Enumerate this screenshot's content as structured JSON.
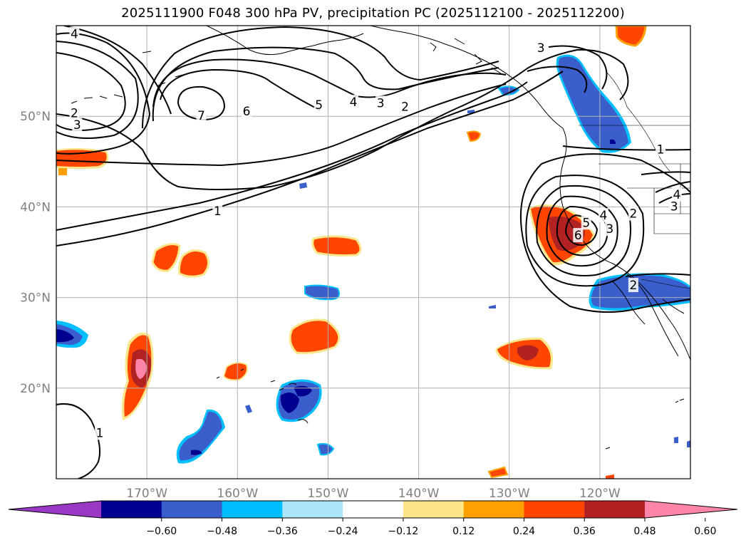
{
  "title": "2025111900 F048 300 hPa PV, precipitation PC (2025112100 - 2025112200)",
  "map": {
    "lon_range": [
      -180,
      -110
    ],
    "lat_range": [
      10,
      60
    ],
    "lat_ticks": [
      {
        "value": 50,
        "label": "50°N"
      },
      {
        "value": 40,
        "label": "40°N"
      },
      {
        "value": 30,
        "label": "30°N"
      },
      {
        "value": 20,
        "label": "20°N"
      }
    ],
    "lon_ticks": [
      {
        "value": -170,
        "label": "170°W"
      },
      {
        "value": -160,
        "label": "160°W"
      },
      {
        "value": -150,
        "label": "150°W"
      },
      {
        "value": -140,
        "label": "140°W"
      },
      {
        "value": -130,
        "label": "130°W"
      },
      {
        "value": -120,
        "label": "120°W"
      }
    ],
    "pv_contour_labels": [
      {
        "text": "4",
        "lon": -178,
        "lat": 59
      },
      {
        "text": "2",
        "lon": -178,
        "lat": 50.3
      },
      {
        "text": "3",
        "lon": -177.7,
        "lat": 49
      },
      {
        "text": "7",
        "lon": -164,
        "lat": 50
      },
      {
        "text": "6",
        "lon": -159,
        "lat": 50.5
      },
      {
        "text": "5",
        "lon": -151,
        "lat": 51.2
      },
      {
        "text": "4",
        "lon": -147.2,
        "lat": 51.5
      },
      {
        "text": "3",
        "lon": -144.2,
        "lat": 51.4
      },
      {
        "text": "2",
        "lon": -141.5,
        "lat": 51
      },
      {
        "text": "3",
        "lon": -126.5,
        "lat": 57.5
      },
      {
        "text": "1",
        "lon": -162.2,
        "lat": 39.5
      },
      {
        "text": "1",
        "lon": -113.3,
        "lat": 46.3
      },
      {
        "text": "5",
        "lon": -121.5,
        "lat": 38.2
      },
      {
        "text": "6",
        "lon": -122.4,
        "lat": 36.8
      },
      {
        "text": "4",
        "lon": -119.6,
        "lat": 39
      },
      {
        "text": "3",
        "lon": -118.9,
        "lat": 37.5
      },
      {
        "text": "2",
        "lon": -116.3,
        "lat": 39.2
      },
      {
        "text": "3",
        "lon": -111.8,
        "lat": 40
      },
      {
        "text": "4",
        "lon": -111.5,
        "lat": 41.3
      },
      {
        "text": "2",
        "lon": -116.3,
        "lat": 31.3
      },
      {
        "text": "1",
        "lon": -175.2,
        "lat": 15
      }
    ],
    "precip_features": [
      {
        "lon": -175.5,
        "lat": 45.5,
        "value": 0.42
      },
      {
        "lon": -170.5,
        "lat": 21.5,
        "value": 0.55
      },
      {
        "lon": -167.7,
        "lat": 34.5,
        "value": 0.38
      },
      {
        "lon": -164.5,
        "lat": 33.5,
        "value": 0.4
      },
      {
        "lon": -159.7,
        "lat": 21.8,
        "value": 0.38
      },
      {
        "lon": -150.5,
        "lat": 24.3,
        "value": 0.4
      },
      {
        "lon": -148.3,
        "lat": 36.3,
        "value": 0.4
      },
      {
        "lon": -128,
        "lat": 23.8,
        "value": 0.45
      },
      {
        "lon": -124,
        "lat": 37.5,
        "value": 0.5
      },
      {
        "lon": -114.7,
        "lat": 59,
        "value": 0.42
      },
      {
        "lon": -122,
        "lat": 53.5,
        "value": -0.44
      },
      {
        "lon": -114.7,
        "lat": 31,
        "value": -0.42
      },
      {
        "lon": -178.2,
        "lat": 25.3,
        "value": -0.5
      },
      {
        "lon": -165.5,
        "lat": 14,
        "value": -0.43
      },
      {
        "lon": -152.6,
        "lat": 19.5,
        "value": -0.52
      },
      {
        "lon": -150.6,
        "lat": 30.7,
        "value": -0.4
      }
    ]
  },
  "colorbar": {
    "colors": [
      "#9a38c6",
      "#000090",
      "#3a5fcc",
      "#00bfff",
      "#aee4f8",
      "#ffffff",
      "#fde68a",
      "#ffa000",
      "#ff4500",
      "#b22222",
      "#ff85a8"
    ],
    "tick_labels": [
      "−0.60",
      "−0.48",
      "−0.36",
      "−0.24",
      "−0.12",
      "0.12",
      "0.24",
      "0.36",
      "0.48",
      "0.60"
    ]
  }
}
